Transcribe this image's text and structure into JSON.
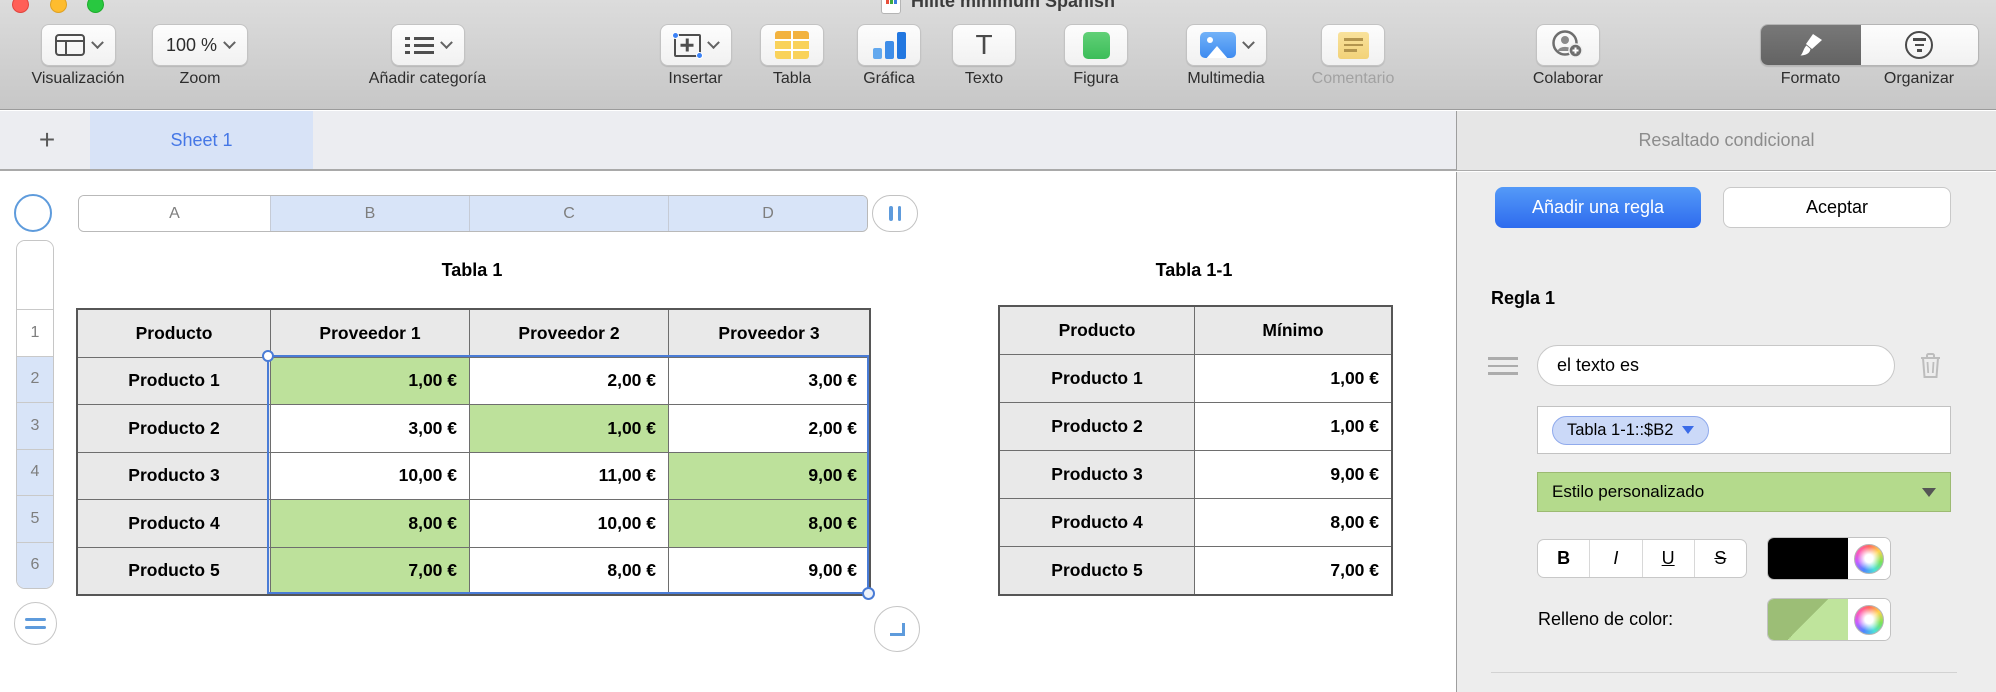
{
  "window": {
    "title": "Hilite minimum Spanish"
  },
  "toolbar": {
    "zoom_value": "100 %",
    "items": [
      {
        "label": "Visualización"
      },
      {
        "label": "Zoom"
      },
      {
        "label": "Añadir categoría"
      },
      {
        "label": "Insertar"
      },
      {
        "label": "Tabla"
      },
      {
        "label": "Gráfica"
      },
      {
        "label": "Texto",
        "glyph": "T"
      },
      {
        "label": "Figura"
      },
      {
        "label": "Multimedia"
      },
      {
        "label": "Comentario"
      },
      {
        "label": "Colaborar"
      },
      {
        "label": "Formato"
      },
      {
        "label": "Organizar"
      }
    ]
  },
  "tabs": {
    "add_label": "+",
    "sheet_label": "Sheet 1"
  },
  "canvas": {
    "columns": [
      "A",
      "B",
      "C",
      "D"
    ],
    "selected_columns": [
      "B",
      "C",
      "D"
    ],
    "rows": [
      "1",
      "2",
      "3",
      "4",
      "5",
      "6"
    ],
    "selected_rows": [
      "2",
      "3",
      "4",
      "5",
      "6"
    ],
    "table1": {
      "title": "Tabla 1",
      "headers": [
        "Producto",
        "Proveedor 1",
        "Proveedor 2",
        "Proveedor 3"
      ],
      "rows": [
        {
          "label": "Producto 1",
          "values": [
            "1,00 €",
            "2,00 €",
            "3,00 €"
          ],
          "hl": [
            1,
            0,
            0
          ]
        },
        {
          "label": "Producto 2",
          "values": [
            "3,00 €",
            "1,00 €",
            "2,00 €"
          ],
          "hl": [
            0,
            1,
            0
          ]
        },
        {
          "label": "Producto 3",
          "values": [
            "10,00 €",
            "11,00 €",
            "9,00 €"
          ],
          "hl": [
            0,
            0,
            1
          ]
        },
        {
          "label": "Producto 4",
          "values": [
            "8,00 €",
            "10,00 €",
            "8,00 €"
          ],
          "hl": [
            1,
            0,
            1
          ]
        },
        {
          "label": "Producto 5",
          "values": [
            "7,00 €",
            "8,00 €",
            "9,00 €"
          ],
          "hl": [
            1,
            0,
            0
          ]
        }
      ]
    },
    "table2": {
      "title": "Tabla 1-1",
      "headers": [
        "Producto",
        "Mínimo"
      ],
      "rows": [
        {
          "label": "Producto 1",
          "value": "1,00 €"
        },
        {
          "label": "Producto 2",
          "value": "1,00 €"
        },
        {
          "label": "Producto 3",
          "value": "9,00 €"
        },
        {
          "label": "Producto 4",
          "value": "8,00 €"
        },
        {
          "label": "Producto 5",
          "value": "7,00 €"
        }
      ]
    }
  },
  "sidebar": {
    "header": "Resaltado condicional",
    "add_rule_label": "Añadir una regla",
    "accept_label": "Aceptar",
    "rule_title": "Regla 1",
    "condition_value": "el texto es",
    "token_value": "Tabla 1-1::$B2",
    "style_value": "Estilo personalizado",
    "format_buttons": [
      "B",
      "I",
      "U",
      "S"
    ],
    "fill_label": "Relleno de color:"
  },
  "colors": {
    "accent_blue": "#2e6bee",
    "selection_blue": "#4a7cd6",
    "highlight_green": "#bde19b",
    "style_dropdown_green": "#b4da8c",
    "fill_dark_green": "#9cbe76",
    "fill_light_green": "#bfe49c",
    "text_color_swatch": "#000000",
    "selected_header_blue": "#d8e4f8",
    "tab_blue": "#d8e3f7"
  }
}
